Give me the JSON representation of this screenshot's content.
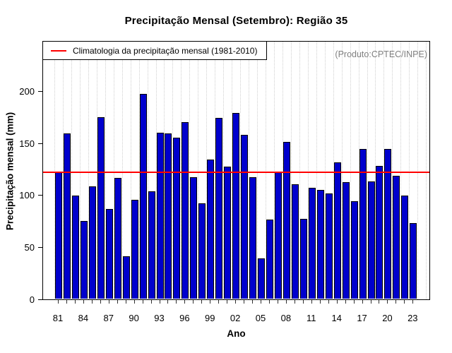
{
  "title": "Precipitação Mensal (Setembro): Região 35",
  "watermark": "(Produto:CPTEC/INPE)",
  "legend": {
    "label": "Climatologia da precipitação mensal (1981-2010)",
    "line_color": "#FF0000"
  },
  "axes": {
    "xlabel": "Ano",
    "ylabel": "Precipitação mensal (mm)"
  },
  "chart_data": {
    "type": "bar",
    "title": "Precipitação Mensal (Setembro): Região 35",
    "xlabel": "Ano",
    "ylabel": "Precipitação mensal (mm)",
    "ylim": [
      0,
      248
    ],
    "yticks": [
      0,
      50,
      100,
      150,
      200
    ],
    "xtick_labels": [
      "81",
      "84",
      "87",
      "90",
      "93",
      "96",
      "99",
      "02",
      "05",
      "08",
      "11",
      "14",
      "17",
      "20",
      "23"
    ],
    "xtick_label_step": 3,
    "years": [
      1981,
      1982,
      1983,
      1984,
      1985,
      1986,
      1987,
      1988,
      1989,
      1990,
      1991,
      1992,
      1993,
      1994,
      1995,
      1996,
      1997,
      1998,
      1999,
      2000,
      2001,
      2002,
      2003,
      2004,
      2005,
      2006,
      2007,
      2008,
      2009,
      2010,
      2011,
      2012,
      2013,
      2014,
      2015,
      2016,
      2017,
      2018,
      2019,
      2020,
      2021,
      2022,
      2023
    ],
    "values": [
      122,
      159,
      99,
      75,
      108,
      175,
      86,
      116,
      41,
      95,
      197,
      103,
      160,
      159,
      155,
      170,
      117,
      92,
      134,
      174,
      127,
      179,
      158,
      117,
      39,
      76,
      122,
      151,
      110,
      77,
      107,
      105,
      101,
      131,
      112,
      94,
      144,
      113,
      128,
      144,
      118,
      99,
      73
    ],
    "climatology_value": 123,
    "climatology_label": "Climatologia da precipitação mensal (1981-2010)",
    "bar_color": "#0000CD",
    "bar_border_color": "#000000",
    "climatology_color": "#FF0000",
    "grid": "vertical-dotted",
    "legend_position": "top-left",
    "watermark": "(Produto:CPTEC/INPE)"
  }
}
